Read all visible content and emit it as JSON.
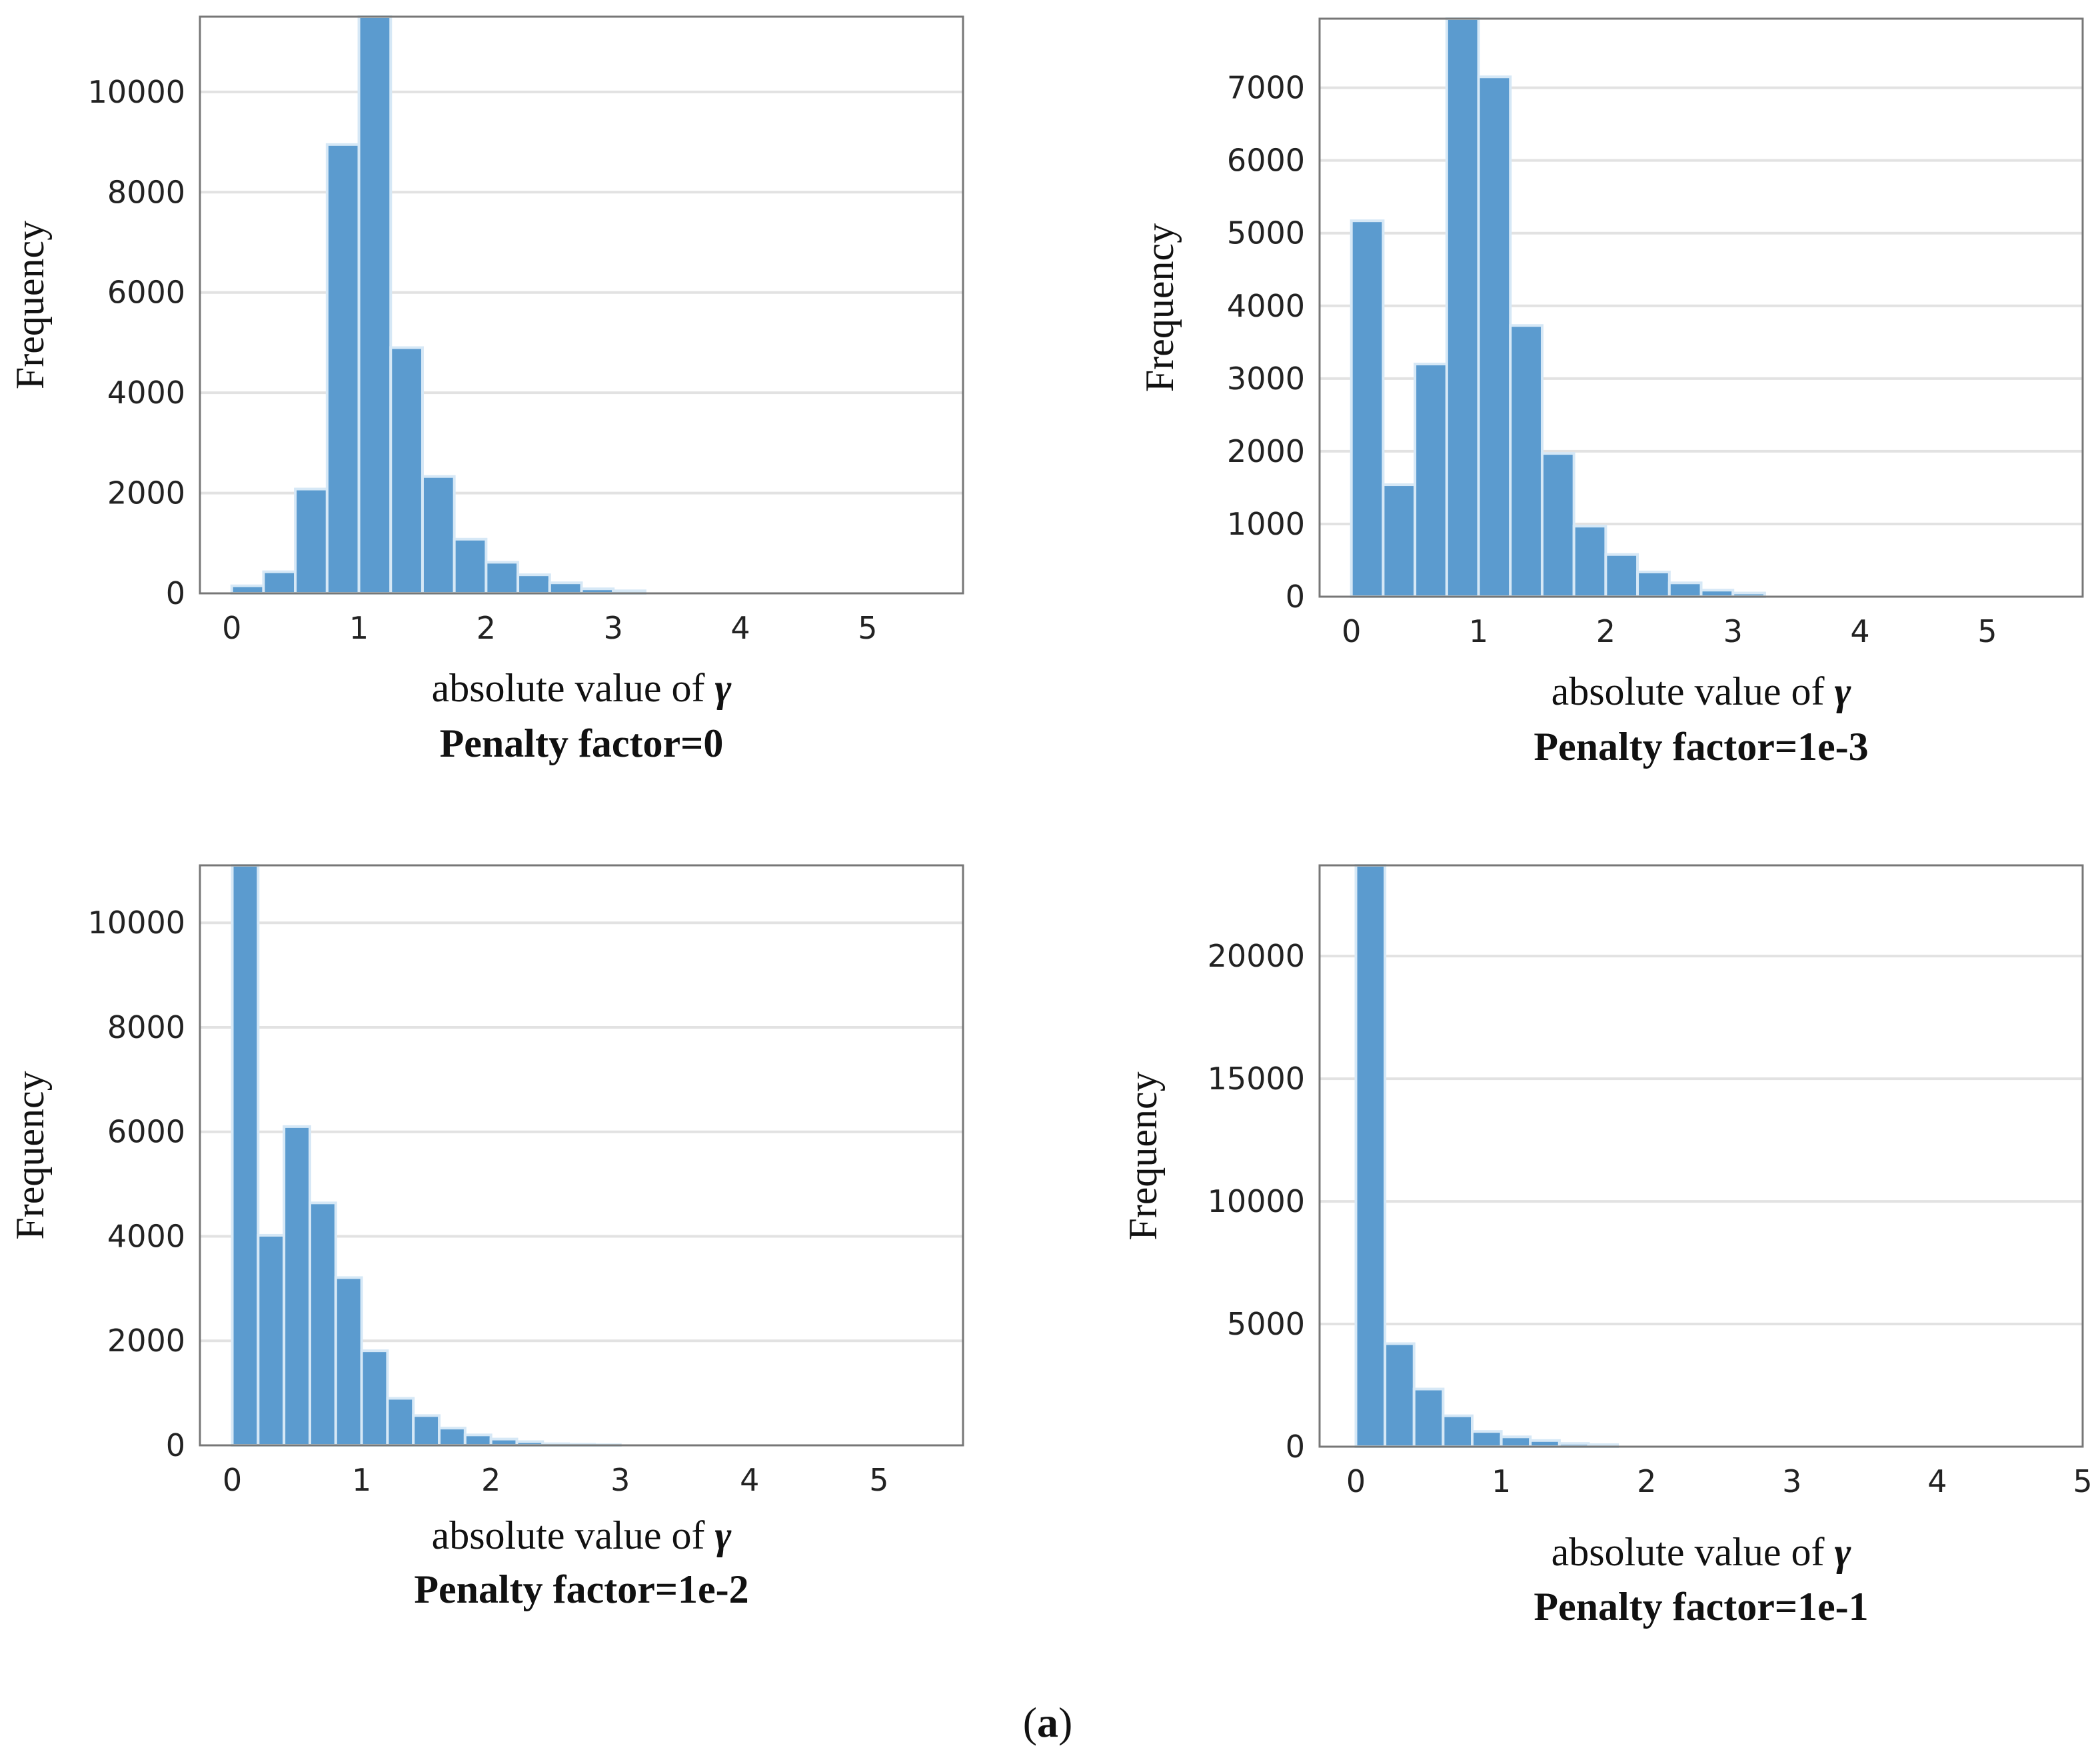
{
  "figure": {
    "caption_open": "(",
    "caption_letter": "a",
    "caption_close": ")",
    "colors": {
      "bar_fill": "#5b9bcf",
      "bar_stroke": "#d6e8f6",
      "grid": "#e2e2e2",
      "frame": "#777777"
    }
  },
  "chart_data": [
    {
      "type": "bar",
      "title": "Penalty factor=0",
      "xlabel_prefix": "absolute value of ",
      "xlabel_symbol": "γ",
      "ylabel": "Frequency",
      "bin_width": 0.25,
      "bin_starts": [
        0,
        0.25,
        0.5,
        0.75,
        1.0,
        1.25,
        1.5,
        1.75,
        2.0,
        2.25,
        2.5,
        2.75,
        3.0
      ],
      "values": [
        150,
        430,
        2080,
        8950,
        11500,
        4900,
        2330,
        1080,
        620,
        370,
        210,
        90,
        50
      ],
      "xlim": [
        -0.25,
        5.75
      ],
      "ylim": [
        0,
        11500
      ],
      "xticks": [
        0,
        1,
        2,
        3,
        4,
        5
      ],
      "xtick_labels": [
        "0",
        "1",
        "2",
        "3",
        "4",
        "5"
      ],
      "yticks": [
        0,
        2000,
        4000,
        6000,
        8000,
        10000
      ],
      "ytick_labels": [
        "0",
        "2000",
        "4000",
        "6000",
        "8000",
        "10000"
      ],
      "grid": true
    },
    {
      "type": "bar",
      "title": "Penalty factor=1e-3",
      "xlabel_prefix": "absolute value of ",
      "xlabel_symbol": "γ",
      "ylabel": "Frequency",
      "bin_width": 0.25,
      "bin_starts": [
        0,
        0.25,
        0.5,
        0.75,
        1.0,
        1.25,
        1.5,
        1.75,
        2.0,
        2.25,
        2.5,
        2.75,
        3.0
      ],
      "values": [
        5170,
        1540,
        3200,
        7950,
        7150,
        3730,
        1970,
        970,
        580,
        340,
        190,
        90,
        50
      ],
      "xlim": [
        -0.25,
        5.75
      ],
      "ylim": [
        0,
        7950
      ],
      "xticks": [
        0,
        1,
        2,
        3,
        4,
        5
      ],
      "xtick_labels": [
        "0",
        "1",
        "2",
        "3",
        "4",
        "5"
      ],
      "yticks": [
        0,
        1000,
        2000,
        3000,
        4000,
        5000,
        6000,
        7000
      ],
      "ytick_labels": [
        "0",
        "1000",
        "2000",
        "3000",
        "4000",
        "5000",
        "6000",
        "7000"
      ],
      "grid": true
    },
    {
      "type": "bar",
      "title": "Penalty factor=1e-2",
      "xlabel_prefix": "absolute value of ",
      "xlabel_symbol": "γ",
      "ylabel": "Frequency",
      "bin_width": 0.2,
      "bin_starts": [
        0,
        0.2,
        0.4,
        0.6,
        0.8,
        1.0,
        1.2,
        1.4,
        1.6,
        1.8,
        2.0,
        2.2,
        2.4,
        2.6,
        2.8
      ],
      "values": [
        11100,
        4020,
        6100,
        4640,
        3210,
        1810,
        900,
        570,
        330,
        200,
        120,
        70,
        30,
        20,
        10
      ],
      "xlim": [
        -0.25,
        5.65
      ],
      "ylim": [
        0,
        11100
      ],
      "xticks": [
        0,
        1,
        2,
        3,
        4,
        5
      ],
      "xtick_labels": [
        "0",
        "1",
        "2",
        "3",
        "4",
        "5"
      ],
      "yticks": [
        0,
        2000,
        4000,
        6000,
        8000,
        10000
      ],
      "ytick_labels": [
        "0",
        "2000",
        "4000",
        "6000",
        "8000",
        "10000"
      ],
      "grid": true
    },
    {
      "type": "bar",
      "title": "Penalty factor=1e-1",
      "xlabel_prefix": "absolute value of ",
      "xlabel_symbol": "γ",
      "ylabel": "Frequency",
      "bin_width": 0.2,
      "bin_starts": [
        0,
        0.2,
        0.4,
        0.6,
        0.8,
        1.0,
        1.2,
        1.4,
        1.6
      ],
      "values": [
        23700,
        4200,
        2350,
        1260,
        620,
        400,
        250,
        130,
        80
      ],
      "xlim": [
        -0.25,
        5.0
      ],
      "ylim": [
        0,
        23700
      ],
      "xticks": [
        0,
        1,
        2,
        3,
        4,
        5
      ],
      "xtick_labels": [
        "0",
        "1",
        "2",
        "3",
        "4",
        "5"
      ],
      "yticks": [
        0,
        5000,
        10000,
        15000,
        20000
      ],
      "ytick_labels": [
        "0",
        "5000",
        "10000",
        "15000",
        "20000"
      ],
      "grid": true
    }
  ]
}
